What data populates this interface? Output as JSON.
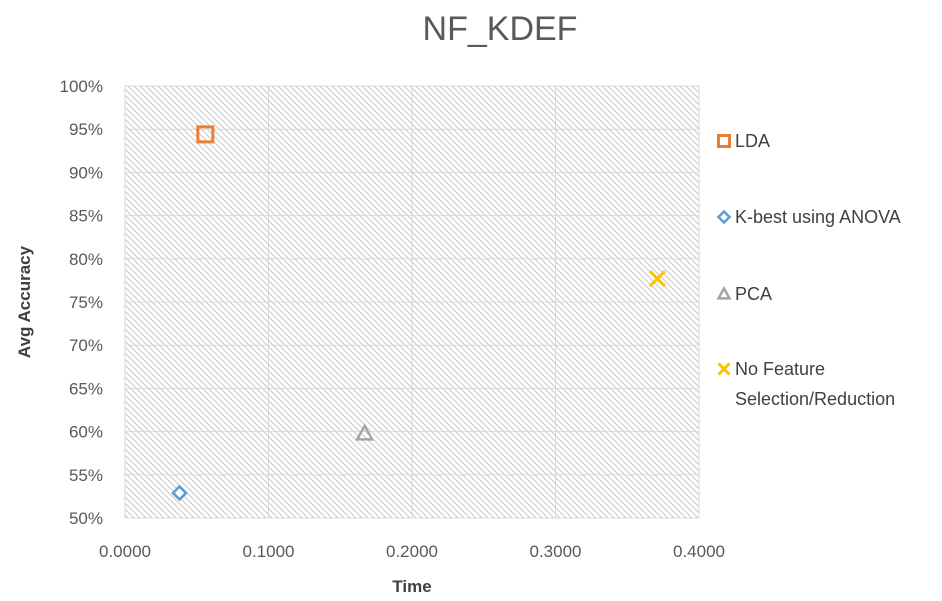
{
  "chart_data": {
    "type": "scatter",
    "title": "NF_KDEF",
    "xlabel": "Time",
    "ylabel": "Avg Accuracy",
    "xlim": [
      0,
      0.4
    ],
    "ylim": [
      0.5,
      1.0
    ],
    "x_ticks": [
      "0.0000",
      "0.1000",
      "0.2000",
      "0.3000",
      "0.4000"
    ],
    "y_ticks": [
      "50%",
      "55%",
      "60%",
      "65%",
      "70%",
      "75%",
      "80%",
      "85%",
      "90%",
      "95%",
      "100%"
    ],
    "grid": true,
    "legend_position": "right",
    "series": [
      {
        "name": "LDA",
        "marker": "square",
        "color": "#ED7D31",
        "points": [
          {
            "x": 0.056,
            "y": 0.944
          }
        ]
      },
      {
        "name": "K-best using ANOVA",
        "marker": "diamond",
        "color": "#5B9BD5",
        "points": [
          {
            "x": 0.038,
            "y": 0.529
          }
        ]
      },
      {
        "name": "PCA",
        "marker": "triangle",
        "color": "#A5A5A5",
        "points": [
          {
            "x": 0.167,
            "y": 0.598
          }
        ]
      },
      {
        "name": "No Feature Selection/Reduction",
        "marker": "x",
        "color": "#FFC000",
        "points": [
          {
            "x": 0.371,
            "y": 0.777
          }
        ]
      }
    ],
    "legend_lines": [
      [
        "LDA"
      ],
      [
        "K-best using ANOVA"
      ],
      [
        "PCA"
      ],
      [
        "No Feature",
        "Selection/Reduction"
      ]
    ]
  }
}
